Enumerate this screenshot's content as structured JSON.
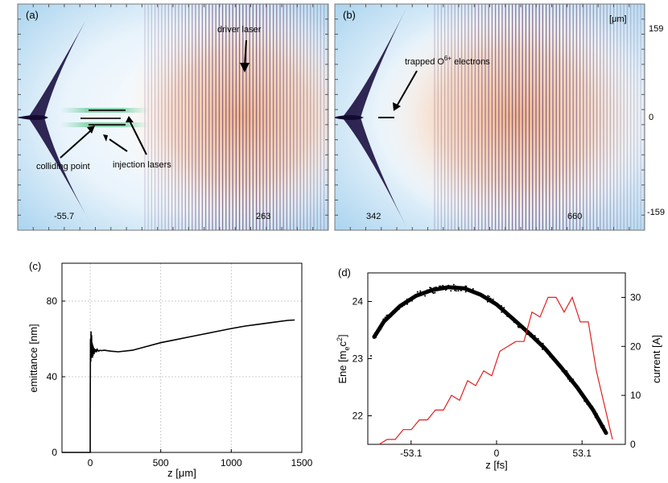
{
  "chart_data": [
    {
      "type": "heatmap",
      "panel": "(a)",
      "x_ticks": [
        "-55.7",
        "263"
      ],
      "annotations": [
        "driver laser",
        "colliding point",
        "injection lasers"
      ]
    },
    {
      "type": "heatmap",
      "panel": "(b)",
      "unit": "[μm]",
      "x_ticks": [
        "342",
        "660"
      ],
      "y_ticks": [
        "159",
        "0",
        "-159"
      ],
      "annotation_main": "trapped O",
      "annotation_sup": "6+",
      "annotation_tail": " electrons"
    },
    {
      "type": "line",
      "panel": "(c)",
      "xlabel": "z [μm]",
      "ylabel": "emittance [nm]",
      "xlim": [
        -200,
        1500
      ],
      "ylim": [
        0,
        100
      ],
      "x_ticks": [
        0,
        500,
        1000,
        1500
      ],
      "y_ticks": [
        0,
        40,
        80
      ],
      "grid": true,
      "series": [
        {
          "x": [
            -200,
            0,
            0,
            2,
            4,
            6,
            8,
            10,
            12,
            14,
            16,
            18,
            20,
            22,
            24,
            26,
            28,
            30,
            35,
            40,
            45,
            50,
            60,
            70,
            80,
            100,
            150,
            200,
            300,
            400,
            500,
            600,
            700,
            800,
            900,
            1000,
            1100,
            1200,
            1300,
            1400,
            1450
          ],
          "y": [
            0,
            0,
            22,
            60,
            48,
            64,
            50,
            62,
            52,
            58,
            50,
            57,
            51,
            56,
            52,
            55,
            52,
            55,
            53,
            54.5,
            53,
            54.5,
            53.5,
            54,
            53.8,
            54,
            53.5,
            53.2,
            54,
            56,
            58,
            59.5,
            61,
            62.5,
            64,
            65.5,
            66.8,
            67.8,
            68.8,
            69.8,
            70
          ]
        }
      ]
    },
    {
      "type": "scatter",
      "panel": "(d)",
      "xlabel": "z [fs]",
      "ylabel": "Ene [m",
      "ylabel_sub": "e",
      "ylabel_mid": "c",
      "ylabel_sup": "2",
      "ylabel_end": "]",
      "y2label": "current [A]",
      "xlim": [
        -80,
        80
      ],
      "ylim": [
        21.5,
        24.5
      ],
      "y2lim": [
        0,
        35
      ],
      "x_ticks": [
        "-53.1",
        "0",
        "53.1"
      ],
      "y_ticks": [
        22,
        23,
        24
      ],
      "y2_ticks": [
        0,
        10,
        20,
        30
      ],
      "energy_x": [
        -76,
        -70,
        -60,
        -50,
        -40,
        -30,
        -20,
        -10,
        0,
        10,
        20,
        30,
        40,
        50,
        60,
        68
      ],
      "energy_y": [
        23.38,
        23.65,
        23.92,
        24.1,
        24.2,
        24.25,
        24.23,
        24.12,
        23.95,
        23.7,
        23.45,
        23.18,
        22.85,
        22.5,
        22.1,
        21.7
      ],
      "current_x": [
        -73,
        -68,
        -63,
        -58,
        -53,
        -48,
        -43,
        -38,
        -33,
        -28,
        -23,
        -18,
        -13,
        -8,
        -3,
        2,
        7,
        12,
        17,
        22,
        27,
        32,
        37,
        42,
        47,
        52,
        57,
        62,
        67,
        72
      ],
      "current_y": [
        0,
        1,
        1,
        3,
        3,
        5,
        5,
        7,
        7,
        10,
        9,
        13,
        12,
        15,
        14,
        19,
        20,
        21,
        21,
        27,
        26,
        30,
        30,
        27,
        30,
        25,
        25,
        15,
        8,
        1
      ]
    }
  ]
}
